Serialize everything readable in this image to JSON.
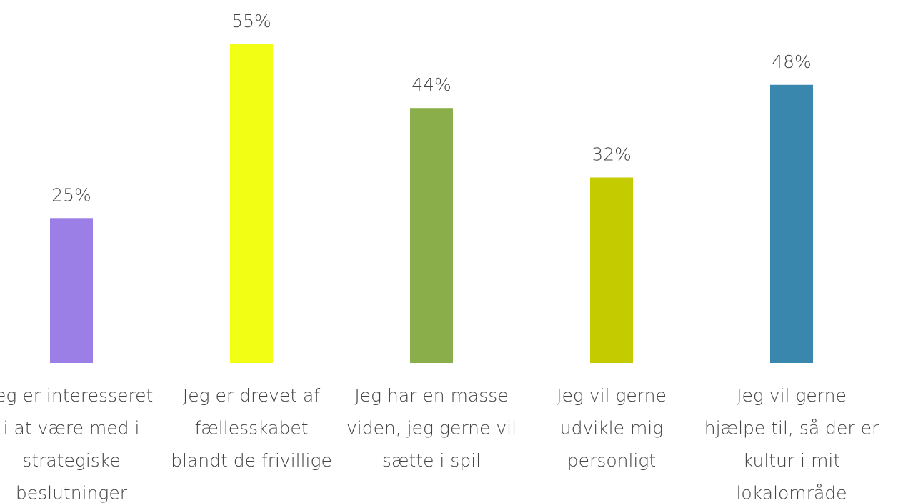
{
  "chart_data": {
    "type": "bar",
    "categories": [
      [
        "Jeg er interesseret",
        "i at være med i",
        "strategiske",
        "beslutninger"
      ],
      [
        "Jeg er drevet af",
        "fællesskabet",
        "blandt de frivillige"
      ],
      [
        "Jeg har en masse",
        "viden, jeg gerne vil",
        "sætte i spil"
      ],
      [
        "Jeg vil gerne",
        "udvikle mig",
        "personligt"
      ],
      [
        "Jeg vil gerne",
        "hjælpe til, så der er",
        "kultur i mit",
        "lokalområde"
      ]
    ],
    "values": [
      25,
      55,
      44,
      32,
      48
    ],
    "value_labels": [
      "25%",
      "55%",
      "44%",
      "32%",
      "48%"
    ],
    "colors": [
      "#9b7fe6",
      "#f2ff15",
      "#8aaf4a",
      "#c4cc00",
      "#3a87ad"
    ]
  }
}
